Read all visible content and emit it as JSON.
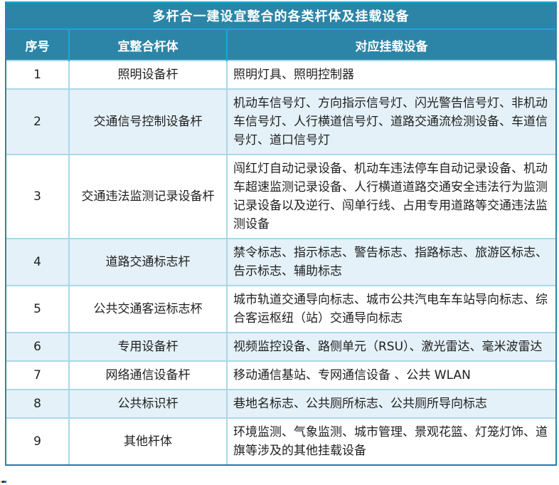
{
  "table": {
    "title": "多杆合一建设宜整合的各类杆体及挂载设备",
    "columns": [
      "序号",
      "宜整合杆体",
      "对应挂载设备"
    ],
    "rows": [
      {
        "index": "1",
        "pole": "照明设备杆",
        "devices": "照明灯具、照明控制器"
      },
      {
        "index": "2",
        "pole": "交通信号控制设备杆",
        "devices": "机动车信号灯、方向指示信号灯、闪光警告信号灯、非机动车信号灯、人行横道信号灯、道路交通流检测设备、车道信号灯、道口信号灯"
      },
      {
        "index": "3",
        "pole": "交通违法监测记录设备杆",
        "devices": "闯红灯自动记录设备、机动车违法停车自动记录设备、机动车超速监测记录设备、人行横道道路交通安全违法行为监测记录设备以及逆行、闯单行线、占用专用道路等交通违法监测设备"
      },
      {
        "index": "4",
        "pole": "道路交通标志杆",
        "devices": "禁令标志、指示标志、警告标志、指路标志、旅游区标志、告示标志、辅助标志"
      },
      {
        "index": "5",
        "pole": "公共交通客运标志杯",
        "devices": "城市轨道交通导向标志、城市公共汽电车车站导向标志、综合客运枢纽（站）交通导向标志"
      },
      {
        "index": "6",
        "pole": "专用设备杆",
        "devices": "视频监控设备、路侧单元（RSU）、激光雷达、毫米波雷达"
      },
      {
        "index": "7",
        "pole": "网络通信设备杆",
        "devices": "移动通信基站、专网通信设备 、公共 WLAN"
      },
      {
        "index": "8",
        "pole": "公共标识杆",
        "devices": "巷地名标志、公共厕所标志、公共厕所导向标志"
      },
      {
        "index": "9",
        "pole": "其他杆体",
        "devices": "环境监测、气象监测、城市管理、景观花篮、灯笼灯饰、道旗等涉及的其他挂载设备"
      }
    ]
  },
  "colors": {
    "header_background": "#2C85A7",
    "header_divider": "#19A6DC",
    "stripe_background": "#E4F1F8",
    "row_border": "#AAD7E8",
    "outer_border": "#2A85A8",
    "bottom_border": "#2279A9",
    "body_text": "#1F1F1F",
    "header_text": "#FFFFFF"
  }
}
